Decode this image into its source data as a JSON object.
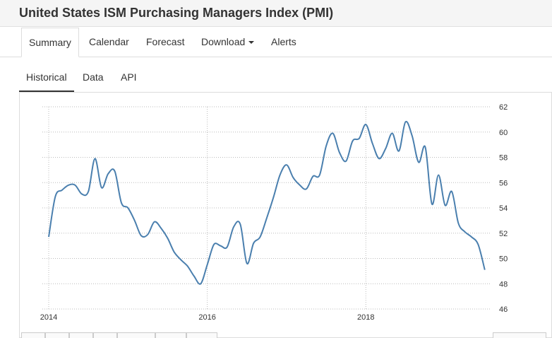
{
  "page": {
    "title": "United States ISM Purchasing Managers Index (PMI)"
  },
  "main_tabs": [
    {
      "label": "Summary"
    },
    {
      "label": "Calendar"
    },
    {
      "label": "Forecast"
    },
    {
      "label": "Download"
    },
    {
      "label": "Alerts"
    }
  ],
  "sub_tabs": [
    {
      "label": "Historical"
    },
    {
      "label": "Data"
    },
    {
      "label": "API"
    }
  ],
  "chart_data": {
    "type": "line",
    "title": "",
    "xlabel": "",
    "ylabel": "",
    "x_ticks": [
      "2014",
      "2016",
      "2018"
    ],
    "y_ticks": [
      46,
      48,
      50,
      52,
      54,
      56,
      58,
      60,
      62
    ],
    "ylim": [
      46,
      62
    ],
    "xlim": [
      "2014-01",
      "2019-07"
    ],
    "grid": true,
    "line_color": "#4a7fae",
    "series": [
      {
        "x": [
          "2014-01",
          "2014-02",
          "2014-03",
          "2014-04",
          "2014-05",
          "2014-06",
          "2014-07",
          "2014-08",
          "2014-09",
          "2014-10",
          "2014-11",
          "2014-12",
          "2015-01",
          "2015-02",
          "2015-03",
          "2015-04",
          "2015-05",
          "2015-06",
          "2015-07",
          "2015-08",
          "2015-09",
          "2015-10",
          "2015-11",
          "2015-12",
          "2016-01",
          "2016-02",
          "2016-03",
          "2016-04",
          "2016-05",
          "2016-06",
          "2016-07",
          "2016-08",
          "2016-09",
          "2016-10",
          "2016-11",
          "2016-12",
          "2017-01",
          "2017-02",
          "2017-03",
          "2017-04",
          "2017-05",
          "2017-06",
          "2017-07",
          "2017-08",
          "2017-09",
          "2017-10",
          "2017-11",
          "2017-12",
          "2018-01",
          "2018-02",
          "2018-03",
          "2018-04",
          "2018-05",
          "2018-06",
          "2018-07",
          "2018-08",
          "2018-09",
          "2018-10",
          "2018-11",
          "2018-12",
          "2019-01",
          "2019-02",
          "2019-03",
          "2019-04",
          "2019-05",
          "2019-06",
          "2019-07"
        ],
        "values": [
          51.7,
          54.9,
          55.4,
          55.8,
          55.8,
          55.1,
          55.3,
          57.9,
          55.6,
          56.7,
          56.9,
          54.4,
          54.0,
          53.0,
          51.8,
          51.9,
          52.9,
          52.4,
          51.6,
          50.5,
          49.9,
          49.4,
          48.6,
          48.0,
          49.5,
          51.1,
          51.0,
          50.9,
          52.5,
          52.7,
          49.6,
          51.2,
          51.7,
          53.2,
          54.8,
          56.6,
          57.4,
          56.4,
          55.8,
          55.5,
          56.5,
          56.6,
          58.9,
          59.9,
          58.4,
          57.7,
          59.3,
          59.5,
          60.6,
          59.1,
          57.9,
          58.7,
          59.9,
          58.5,
          60.8,
          59.7,
          57.6,
          58.8,
          54.3,
          56.6,
          54.2,
          55.3,
          52.8,
          52.1,
          51.7,
          51.1,
          49.1
        ]
      }
    ]
  }
}
